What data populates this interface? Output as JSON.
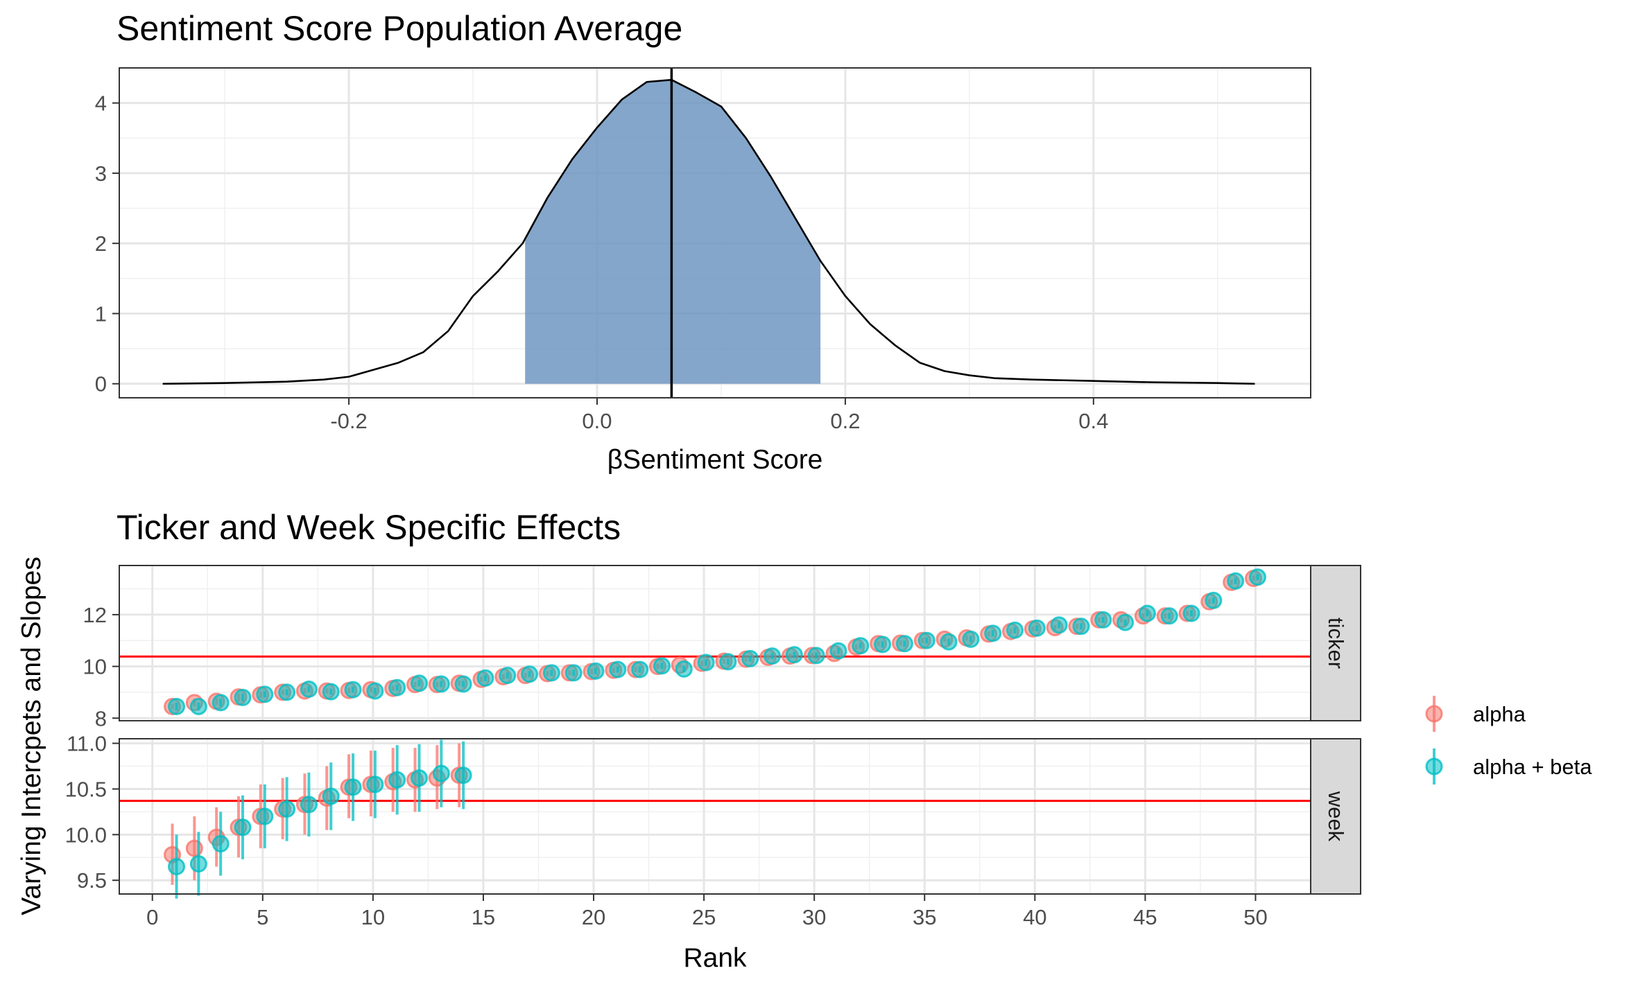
{
  "colors": {
    "alpha": "#F8766D",
    "alpha_beta": "#00BFC4",
    "density_fill": "#6A93BF",
    "reference_line": "#FF0000",
    "mean_line": "#000000",
    "strip_fill": "#D9D9D9"
  },
  "chart_data": [
    {
      "type": "area",
      "title": "Sentiment Score Population Average",
      "xlabel": "βSentiment Score",
      "ylabel": "",
      "xlim": [
        -0.385,
        0.575
      ],
      "ylim": [
        -0.2,
        4.5
      ],
      "x_ticks": [
        -0.2,
        0.0,
        0.2,
        0.4
      ],
      "x_tick_labels": [
        "-0.2",
        "0.0",
        "0.2",
        "0.4"
      ],
      "y_ticks": [
        0,
        1,
        2,
        3,
        4
      ],
      "y_tick_labels": [
        "0",
        "1",
        "2",
        "3",
        "4"
      ],
      "grid": true,
      "density": {
        "x": [
          -0.35,
          -0.3,
          -0.25,
          -0.22,
          -0.2,
          -0.18,
          -0.16,
          -0.14,
          -0.12,
          -0.1,
          -0.08,
          -0.06,
          -0.04,
          -0.02,
          0.0,
          0.02,
          0.04,
          0.06,
          0.08,
          0.1,
          0.12,
          0.14,
          0.16,
          0.18,
          0.2,
          0.22,
          0.24,
          0.26,
          0.28,
          0.3,
          0.32,
          0.35,
          0.4,
          0.45,
          0.5,
          0.53
        ],
        "y": [
          0.0,
          0.01,
          0.03,
          0.06,
          0.1,
          0.2,
          0.3,
          0.45,
          0.75,
          1.25,
          1.6,
          2.0,
          2.65,
          3.2,
          3.65,
          4.05,
          4.3,
          4.33,
          4.15,
          3.95,
          3.5,
          2.95,
          2.35,
          1.75,
          1.25,
          0.85,
          0.55,
          0.3,
          0.18,
          0.12,
          0.08,
          0.06,
          0.04,
          0.02,
          0.01,
          0.0
        ]
      },
      "shaded_interval": [
        -0.058,
        0.18
      ],
      "mean_line_x": 0.06
    },
    {
      "type": "scatter",
      "title": "Ticker and Week Specific Effects",
      "xlabel": "Rank",
      "ylabel": "Varying Intercpets and Slopes",
      "xlim": [
        -1.5,
        52.5
      ],
      "x_ticks": [
        0,
        5,
        10,
        15,
        20,
        25,
        30,
        35,
        40,
        45,
        50
      ],
      "x_tick_labels": [
        "0",
        "5",
        "10",
        "15",
        "20",
        "25",
        "30",
        "35",
        "40",
        "45",
        "50"
      ],
      "legend": {
        "position": "right",
        "entries": [
          "alpha",
          "alpha + beta"
        ]
      },
      "panels": [
        {
          "strip": "ticker",
          "ylim": [
            7.9,
            13.9
          ],
          "y_ticks": [
            8,
            10,
            12
          ],
          "y_tick_labels": [
            "8",
            "10",
            "12"
          ],
          "reference_line_y": 10.38,
          "series": [
            {
              "name": "alpha",
              "x": [
                1,
                2,
                3,
                4,
                5,
                6,
                7,
                8,
                9,
                10,
                11,
                12,
                13,
                14,
                15,
                16,
                17,
                18,
                19,
                20,
                21,
                22,
                23,
                24,
                25,
                26,
                27,
                28,
                29,
                30,
                31,
                32,
                33,
                34,
                35,
                36,
                37,
                38,
                39,
                40,
                41,
                42,
                43,
                44,
                45,
                46,
                47,
                48,
                49,
                50
              ],
              "y": [
                8.45,
                8.6,
                8.65,
                8.82,
                8.9,
                9.0,
                9.05,
                9.05,
                9.07,
                9.1,
                9.15,
                9.3,
                9.3,
                9.35,
                9.5,
                9.6,
                9.65,
                9.72,
                9.75,
                9.8,
                9.85,
                9.88,
                10.0,
                10.05,
                10.12,
                10.2,
                10.28,
                10.35,
                10.4,
                10.42,
                10.5,
                10.75,
                10.88,
                10.9,
                11.0,
                11.05,
                11.1,
                11.25,
                11.35,
                11.45,
                11.5,
                11.55,
                11.8,
                11.8,
                11.95,
                11.95,
                12.05,
                12.5,
                13.25,
                13.4
              ],
              "err_low": [
                8.35,
                8.45,
                8.5,
                8.65,
                8.78,
                8.9,
                8.95,
                8.95,
                8.97,
                9.0,
                9.05,
                9.2,
                9.2,
                9.25,
                9.4,
                9.5,
                9.55,
                9.62,
                9.65,
                9.7,
                9.75,
                9.78,
                9.9,
                9.95,
                10.02,
                10.1,
                10.18,
                10.25,
                10.3,
                10.32,
                10.4,
                10.65,
                10.78,
                10.8,
                10.9,
                10.95,
                11.0,
                11.15,
                11.25,
                11.35,
                11.4,
                11.45,
                11.7,
                11.7,
                11.85,
                11.85,
                11.95,
                12.4,
                13.15,
                13.3
              ],
              "err_high": [
                8.55,
                8.75,
                8.8,
                8.95,
                9.02,
                9.1,
                9.15,
                9.15,
                9.17,
                9.2,
                9.25,
                9.4,
                9.4,
                9.45,
                9.6,
                9.7,
                9.75,
                9.82,
                9.85,
                9.9,
                9.95,
                9.98,
                10.1,
                10.15,
                10.22,
                10.3,
                10.38,
                10.45,
                10.5,
                10.52,
                10.6,
                10.85,
                10.98,
                11.0,
                11.1,
                11.15,
                11.2,
                11.35,
                11.45,
                11.55,
                11.6,
                11.65,
                11.9,
                11.9,
                12.05,
                12.05,
                12.15,
                12.6,
                13.35,
                13.5
              ]
            },
            {
              "name": "alpha + beta",
              "x": [
                1,
                2,
                3,
                4,
                5,
                6,
                7,
                8,
                9,
                10,
                11,
                12,
                13,
                14,
                15,
                16,
                17,
                18,
                19,
                20,
                21,
                22,
                23,
                24,
                25,
                26,
                27,
                28,
                29,
                30,
                31,
                32,
                33,
                34,
                35,
                36,
                37,
                38,
                39,
                40,
                41,
                42,
                43,
                44,
                45,
                46,
                47,
                48,
                49,
                50
              ],
              "y": [
                8.45,
                8.45,
                8.6,
                8.8,
                8.92,
                9.0,
                9.12,
                9.02,
                9.1,
                9.05,
                9.18,
                9.35,
                9.32,
                9.32,
                9.55,
                9.65,
                9.7,
                9.75,
                9.75,
                9.82,
                9.88,
                9.88,
                10.02,
                9.9,
                10.15,
                10.18,
                10.3,
                10.4,
                10.45,
                10.42,
                10.6,
                10.8,
                10.85,
                10.88,
                11.0,
                10.95,
                11.05,
                11.28,
                11.4,
                11.48,
                11.6,
                11.55,
                11.8,
                11.7,
                12.05,
                11.95,
                12.05,
                12.55,
                13.3,
                13.45
              ],
              "err_low": [
                8.3,
                8.3,
                8.45,
                8.65,
                8.8,
                8.88,
                9.0,
                8.9,
                8.98,
                8.93,
                9.06,
                9.23,
                9.2,
                9.2,
                9.43,
                9.53,
                9.58,
                9.63,
                9.63,
                9.7,
                9.76,
                9.76,
                9.9,
                9.78,
                10.03,
                10.06,
                10.18,
                10.28,
                10.33,
                10.3,
                10.48,
                10.68,
                10.73,
                10.76,
                10.88,
                10.83,
                10.93,
                11.16,
                11.28,
                11.36,
                11.48,
                11.43,
                11.68,
                11.58,
                11.93,
                11.83,
                11.93,
                12.43,
                13.18,
                13.33
              ],
              "err_high": [
                8.6,
                8.6,
                8.75,
                8.95,
                9.04,
                9.12,
                9.24,
                9.14,
                9.22,
                9.17,
                9.3,
                9.47,
                9.44,
                9.44,
                9.67,
                9.77,
                9.82,
                9.87,
                9.87,
                9.94,
                10.0,
                10.0,
                10.14,
                10.02,
                10.27,
                10.3,
                10.42,
                10.52,
                10.57,
                10.54,
                10.72,
                10.92,
                10.97,
                11.0,
                11.12,
                11.07,
                11.17,
                11.4,
                11.52,
                11.6,
                11.72,
                11.67,
                11.92,
                11.82,
                12.17,
                12.07,
                12.17,
                12.67,
                13.42,
                13.57
              ]
            }
          ]
        },
        {
          "strip": "week",
          "ylim": [
            9.35,
            11.05
          ],
          "y_ticks": [
            9.5,
            10.0,
            10.5,
            11.0
          ],
          "y_tick_labels": [
            "9.5",
            "10.0",
            "10.5",
            "11.0"
          ],
          "reference_line_y": 10.37,
          "series": [
            {
              "name": "alpha",
              "x": [
                1,
                2,
                3,
                4,
                5,
                6,
                7,
                8,
                9,
                10,
                11,
                12,
                13,
                14
              ],
              "y": [
                9.78,
                9.85,
                9.97,
                10.08,
                10.2,
                10.28,
                10.33,
                10.4,
                10.52,
                10.55,
                10.58,
                10.6,
                10.62,
                10.65
              ],
              "err_low": [
                9.45,
                9.5,
                9.65,
                9.75,
                9.85,
                9.95,
                10.0,
                10.05,
                10.18,
                10.2,
                10.25,
                10.25,
                10.28,
                10.3
              ],
              "err_high": [
                10.12,
                10.2,
                10.3,
                10.42,
                10.55,
                10.62,
                10.67,
                10.75,
                10.88,
                10.92,
                10.95,
                10.95,
                10.98,
                11.0
              ]
            },
            {
              "name": "alpha + beta",
              "x": [
                1,
                2,
                3,
                4,
                5,
                6,
                7,
                8,
                9,
                10,
                11,
                12,
                13,
                14
              ],
              "y": [
                9.65,
                9.68,
                9.9,
                10.08,
                10.2,
                10.28,
                10.33,
                10.42,
                10.52,
                10.55,
                10.6,
                10.62,
                10.67,
                10.65
              ],
              "err_low": [
                9.3,
                9.33,
                9.55,
                9.73,
                9.85,
                9.93,
                9.98,
                10.05,
                10.15,
                10.18,
                10.22,
                10.25,
                10.3,
                10.28
              ],
              "err_high": [
                10.0,
                10.03,
                10.25,
                10.43,
                10.55,
                10.63,
                10.68,
                10.79,
                10.89,
                10.92,
                10.98,
                10.99,
                11.04,
                11.02
              ]
            }
          ]
        }
      ]
    }
  ]
}
